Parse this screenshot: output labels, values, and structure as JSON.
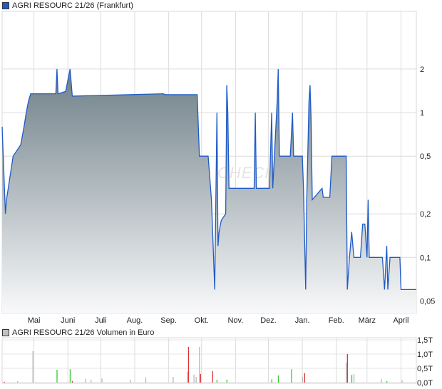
{
  "price_legend": {
    "label": "AGRI RESOURC 21/26 (Frankfurt)",
    "color": "#1f5bc6"
  },
  "volume_legend": {
    "label": "AGRI RESOURC 21/26 Volumen in Euro",
    "color": "#c0c0c0"
  },
  "watermark": "CHECK",
  "chart_data": [
    {
      "type": "area",
      "name": "AGRI RESOURC 21/26 (Frankfurt)",
      "yscale": "log",
      "ylim": [
        0.041,
        5
      ],
      "y_ticks": [
        {
          "v": 2,
          "label": "2"
        },
        {
          "v": 1,
          "label": "1"
        },
        {
          "v": 0.5,
          "label": "0,5"
        },
        {
          "v": 0.2,
          "label": "0,2"
        },
        {
          "v": 0.1,
          "label": "0,1"
        },
        {
          "v": 0.05,
          "label": "0,05"
        }
      ],
      "x_range": [
        "04-02",
        "04-15"
      ],
      "x_ticks": [
        {
          "date": "05-01",
          "label": "Mai"
        },
        {
          "date": "06-01",
          "label": "Juni"
        },
        {
          "date": "07-01",
          "label": "Juli"
        },
        {
          "date": "08-01",
          "label": "Aug."
        },
        {
          "date": "09-01",
          "label": "Sep."
        },
        {
          "date": "10-01",
          "label": "Okt."
        },
        {
          "date": "11-01",
          "label": "Nov."
        },
        {
          "date": "12-01",
          "label": "Dez."
        },
        {
          "date": "01-01",
          "label": "Jan."
        },
        {
          "date": "02-01",
          "label": "Feb."
        },
        {
          "date": "03-01",
          "label": "März"
        },
        {
          "date": "04-01",
          "label": "April"
        }
      ],
      "grid": true,
      "line_color": "#1f5bc6",
      "fill_top_color": "#6f7f88",
      "fill_bottom_color": "#f8f9fa",
      "points": [
        [
          "04-02",
          0.8
        ],
        [
          "04-05",
          0.2
        ],
        [
          "04-06",
          0.25
        ],
        [
          "04-12",
          0.5
        ],
        [
          "04-19",
          0.6
        ],
        [
          "04-22",
          0.8
        ],
        [
          "04-24",
          1.0
        ],
        [
          "04-26",
          1.2
        ],
        [
          "04-28",
          1.35
        ],
        [
          "05-21",
          1.35
        ],
        [
          "05-22",
          2.0
        ],
        [
          "05-23",
          1.35
        ],
        [
          "05-30",
          1.4
        ],
        [
          "06-03",
          2.0
        ],
        [
          "06-05",
          1.3
        ],
        [
          "08-27",
          1.35
        ],
        [
          "08-29",
          1.33
        ],
        [
          "09-27",
          1.33
        ],
        [
          "09-29",
          0.5
        ],
        [
          "10-07",
          0.5
        ],
        [
          "10-10",
          0.25
        ],
        [
          "10-13",
          0.06
        ],
        [
          "10-15",
          1.0
        ],
        [
          "10-16",
          0.12
        ],
        [
          "10-17",
          0.15
        ],
        [
          "10-19",
          0.18
        ],
        [
          "10-23",
          0.2
        ],
        [
          "10-24",
          1.55
        ],
        [
          "10-25",
          1.0
        ],
        [
          "10-26",
          0.3
        ],
        [
          "11-18",
          0.3
        ],
        [
          "11-19",
          1.0
        ],
        [
          "11-20",
          0.3
        ],
        [
          "12-02",
          0.3
        ],
        [
          "12-04",
          1.0
        ],
        [
          "12-05",
          0.3
        ],
        [
          "12-09",
          1.2
        ],
        [
          "12-10",
          2.0
        ],
        [
          "12-11",
          0.5
        ],
        [
          "12-21",
          0.5
        ],
        [
          "12-23",
          1.0
        ],
        [
          "12-24",
          0.5
        ],
        [
          "01-01",
          0.5
        ],
        [
          "01-02",
          0.3
        ],
        [
          "01-04",
          0.06
        ],
        [
          "01-05",
          0.25
        ],
        [
          "01-07",
          1.2
        ],
        [
          "01-08",
          1.55
        ],
        [
          "01-09",
          0.9
        ],
        [
          "01-10",
          0.25
        ],
        [
          "01-19",
          0.3
        ],
        [
          "01-20",
          0.26
        ],
        [
          "01-26",
          0.26
        ],
        [
          "01-28",
          0.5
        ],
        [
          "02-10",
          0.5
        ],
        [
          "02-11",
          0.06
        ],
        [
          "02-13",
          0.1
        ],
        [
          "02-15",
          0.15
        ],
        [
          "02-17",
          0.1
        ],
        [
          "02-23",
          0.1
        ],
        [
          "02-25",
          0.17
        ],
        [
          "02-27",
          0.17
        ],
        [
          "03-01",
          0.1
        ],
        [
          "03-02",
          0.25
        ],
        [
          "03-03",
          0.1
        ],
        [
          "03-15",
          0.1
        ],
        [
          "03-17",
          0.06
        ],
        [
          "03-19",
          0.12
        ],
        [
          "03-20",
          0.06
        ],
        [
          "03-22",
          0.1
        ],
        [
          "03-31",
          0.1
        ],
        [
          "04-01",
          0.06
        ],
        [
          "04-15",
          0.06
        ]
      ]
    },
    {
      "type": "bar",
      "name": "AGRI RESOURC 21/26 Volumen in Euro",
      "ylim": [
        0,
        1.5
      ],
      "y_ticks": [
        {
          "v": 1.5,
          "label": "1,5T"
        },
        {
          "v": 1.0,
          "label": "1,0T"
        },
        {
          "v": 0.5,
          "label": "0,5T"
        },
        {
          "v": 0.0,
          "label": "0,0T"
        }
      ],
      "colors": {
        "up": "#33cc33",
        "down": "#dd3333",
        "neutral": "#b8b8b8"
      },
      "bars": [
        [
          "04-04",
          0.03,
          "down"
        ],
        [
          "04-16",
          0.05,
          "neutral"
        ],
        [
          "04-30",
          1.1,
          "neutral"
        ],
        [
          "05-22",
          0.45,
          "up"
        ],
        [
          "06-03",
          0.47,
          "up"
        ],
        [
          "06-05",
          0.05,
          "down"
        ],
        [
          "06-17",
          0.13,
          "neutral"
        ],
        [
          "06-22",
          0.1,
          "neutral"
        ],
        [
          "07-02",
          0.15,
          "neutral"
        ],
        [
          "07-28",
          0.1,
          "neutral"
        ],
        [
          "08-11",
          0.18,
          "neutral"
        ],
        [
          "09-05",
          0.2,
          "neutral"
        ],
        [
          "09-19",
          1.25,
          "down"
        ],
        [
          "09-18",
          0.38,
          "neutral"
        ],
        [
          "09-24",
          0.28,
          "neutral"
        ],
        [
          "09-26",
          0.2,
          "neutral"
        ],
        [
          "09-29",
          1.25,
          "neutral"
        ],
        [
          "09-30",
          0.3,
          "down"
        ],
        [
          "10-11",
          0.4,
          "down"
        ],
        [
          "10-15",
          0.1,
          "up"
        ],
        [
          "10-24",
          0.1,
          "up"
        ],
        [
          "12-04",
          0.12,
          "up"
        ],
        [
          "12-10",
          0.25,
          "up"
        ],
        [
          "12-22",
          0.47,
          "up"
        ],
        [
          "01-01",
          0.2,
          "neutral"
        ],
        [
          "01-03",
          0.33,
          "down"
        ],
        [
          "02-10",
          0.7,
          "neutral"
        ],
        [
          "02-11",
          1.0,
          "down"
        ],
        [
          "02-15",
          0.27,
          "up"
        ],
        [
          "02-17",
          0.3,
          "neutral"
        ],
        [
          "03-14",
          0.12,
          "neutral"
        ],
        [
          "03-19",
          0.05,
          "up"
        ],
        [
          "04-02",
          0.08,
          "neutral"
        ]
      ]
    }
  ]
}
